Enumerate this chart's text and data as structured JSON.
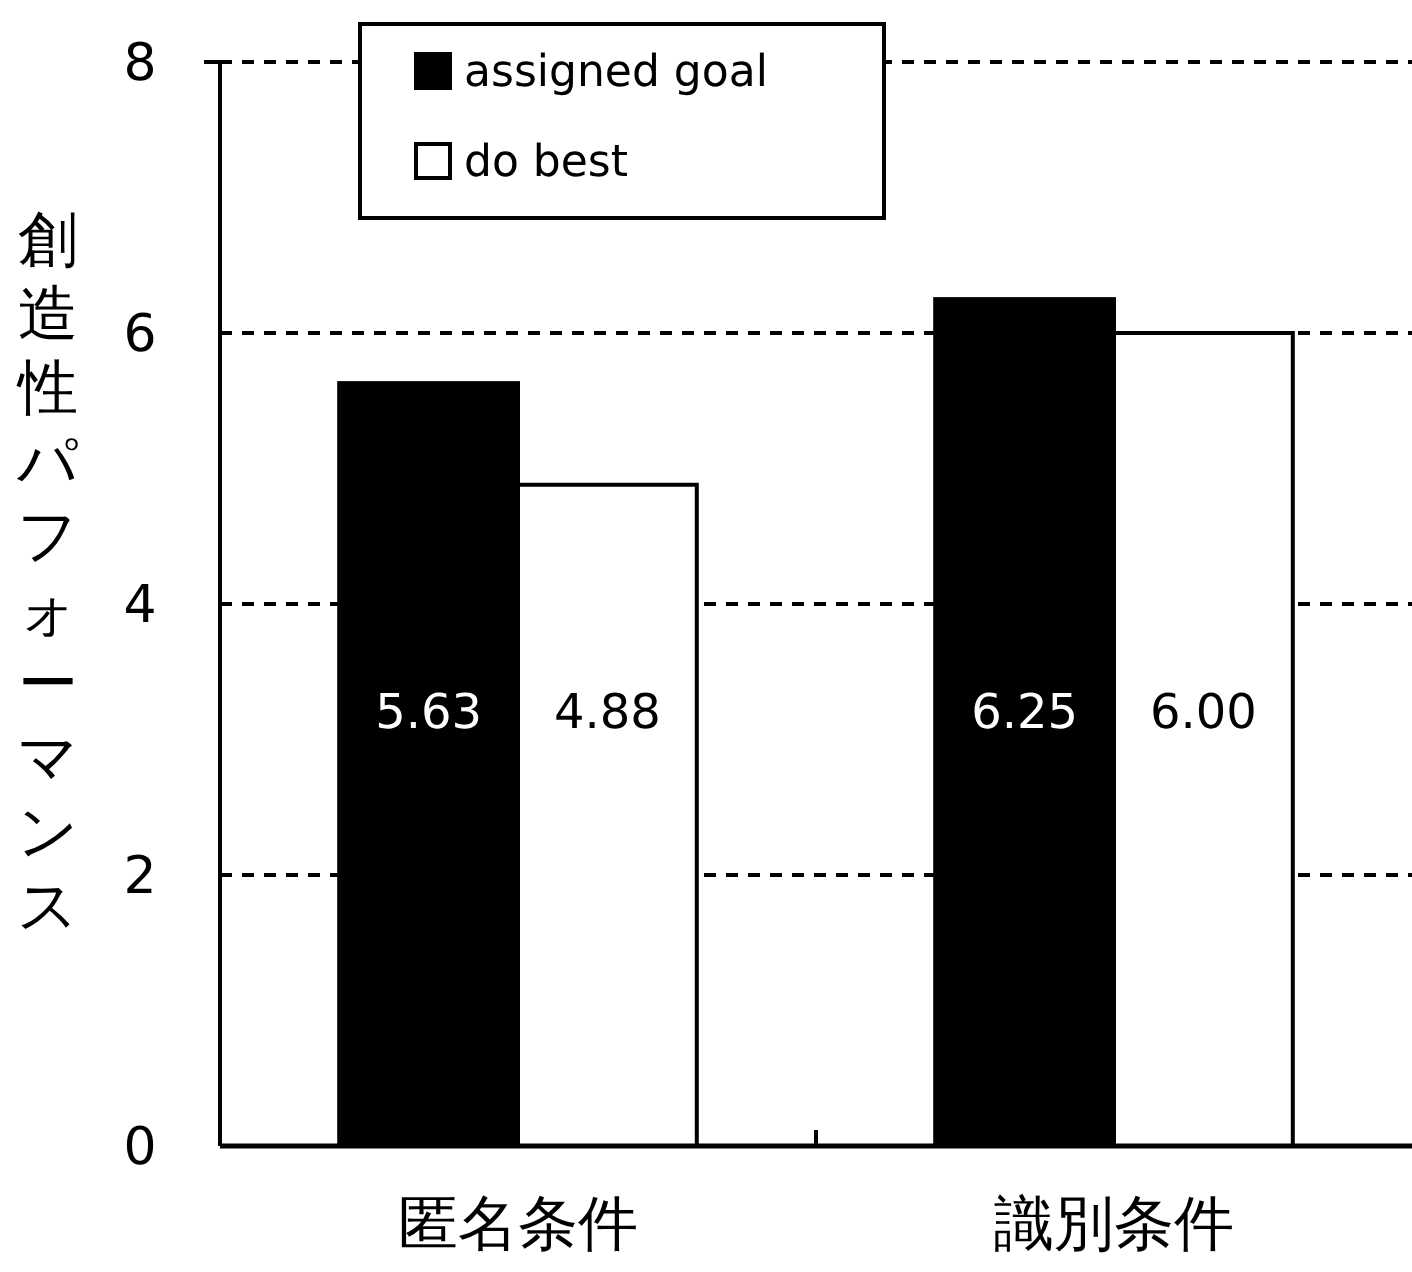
{
  "chart_data": {
    "type": "bar",
    "ylabel": "創造性パフォーマンス",
    "categories": [
      "匿名条件",
      "識別条件"
    ],
    "series": [
      {
        "name": "assigned goal",
        "color": "#000000",
        "values": [
          5.63,
          6.25
        ],
        "value_labels": [
          "5.63",
          "6.25"
        ]
      },
      {
        "name": "do best",
        "color": "#ffffff",
        "values": [
          4.88,
          6.0
        ],
        "value_labels": [
          "4.88",
          "6.00"
        ]
      }
    ],
    "ylim": [
      0,
      8
    ],
    "yticks": [
      0,
      2,
      4,
      6,
      8
    ],
    "grid": "y",
    "legend": "top left"
  }
}
